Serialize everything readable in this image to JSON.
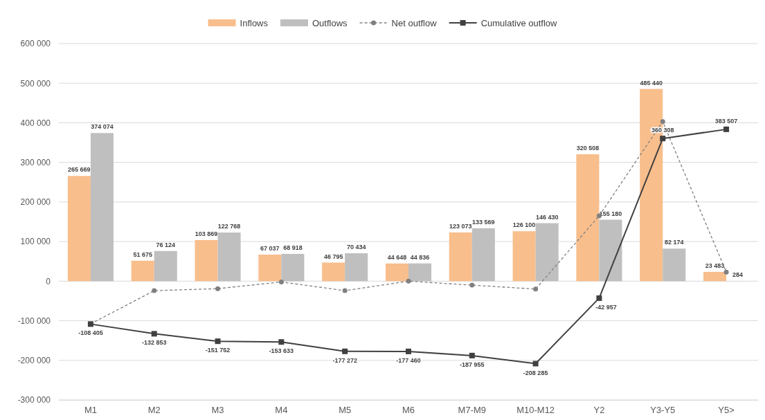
{
  "chart_data": {
    "type": "bar",
    "categories": [
      "M1",
      "M2",
      "M3",
      "M4",
      "M5",
      "M6",
      "M7-M9",
      "M10-M12",
      "Y2",
      "Y3-Y5",
      "Y5>"
    ],
    "ylim": [
      -300000,
      600000
    ],
    "yticks": [
      {
        "value": -300000,
        "label": "-300 000"
      },
      {
        "value": -200000,
        "label": "-200 000"
      },
      {
        "value": -100000,
        "label": "-100 000"
      },
      0,
      {
        "value": 100000,
        "label": "100 000"
      },
      {
        "value": 200000,
        "label": "200 000"
      },
      {
        "value": 300000,
        "label": "300 000"
      },
      {
        "value": 400000,
        "label": "400 000"
      },
      {
        "value": 500000,
        "label": "500 000"
      },
      {
        "value": 600000,
        "label": "600 000"
      }
    ],
    "grid": "y",
    "legend": "top",
    "series": [
      {
        "name": "Inflows",
        "color": "#f8be8c",
        "values": [
          265669,
          51675,
          103869,
          67037,
          46795,
          44648,
          123073,
          126100,
          320508,
          485440,
          23483
        ],
        "value_labels": [
          "265 669",
          "51 675",
          "103 869",
          "67 037",
          "46 795",
          "44 648",
          "123 073",
          "126 100",
          "320 508",
          "485 440",
          "23 483"
        ]
      },
      {
        "name": "Outflows",
        "color": "#bfbfbf",
        "values": [
          374074,
          76124,
          122768,
          68918,
          70434,
          44836,
          133569,
          146430,
          155180,
          82174,
          284
        ],
        "value_labels": [
          "374 074",
          "76 124",
          "122 768",
          "68 918",
          "70 434",
          "44 836",
          "133 569",
          "146 430",
          "155 180",
          "82 174",
          "284"
        ]
      },
      {
        "name": "Net outflow",
        "type": "line",
        "color": "#808080",
        "marker": "circle",
        "line_style": "dashed",
        "values": [
          -108000,
          -24000,
          -19000,
          -2000,
          -24000,
          0,
          -10000,
          -20000,
          165000,
          403000,
          23000
        ]
      },
      {
        "name": "Cumulative outflow",
        "type": "line",
        "color": "#404040",
        "marker": "square",
        "line_style": "solid",
        "values": [
          -108405,
          -132853,
          -151752,
          -153633,
          -177272,
          -177460,
          -187955,
          -208285,
          -42957,
          360308,
          383507
        ],
        "value_labels": [
          "-108 405",
          "-132 853",
          "-151 752",
          "-153 633",
          "-177 272",
          "-177 460",
          "-187 955",
          "-208 285",
          "-42 957",
          "360 308",
          "383 507"
        ]
      }
    ]
  }
}
